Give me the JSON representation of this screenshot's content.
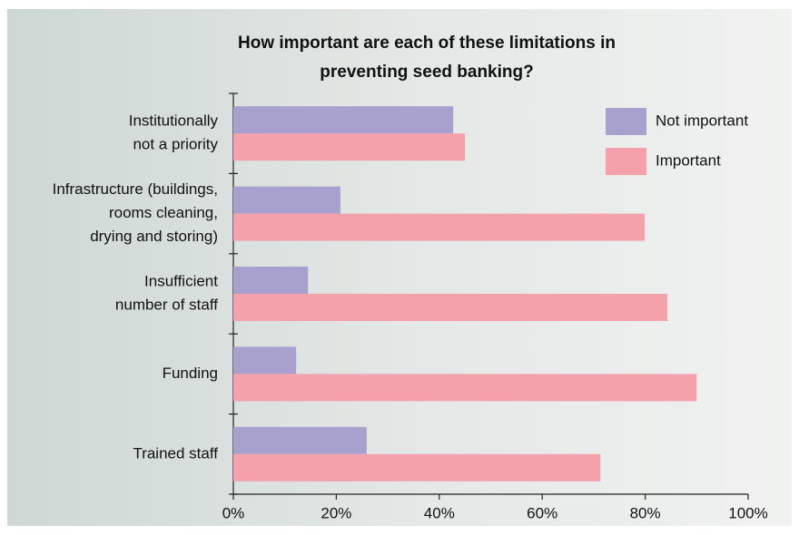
{
  "chart_data": {
    "type": "hbar",
    "title": [
      "How important are each of these limitations in",
      "preventing seed banking?"
    ],
    "categories": [
      [
        "Institutionally",
        "not a priority"
      ],
      [
        "Infrastructure (buildings,",
        "rooms cleaning,",
        "drying and storing)"
      ],
      [
        "Insufficient",
        "number of staff"
      ],
      [
        "Funding"
      ],
      [
        "Trained staff"
      ]
    ],
    "series": [
      {
        "name": "Not important",
        "color": "#a9a1cd",
        "values": [
          42.7,
          20.8,
          14.5,
          12.2,
          25.9
        ]
      },
      {
        "name": "Important",
        "color": "#f4a1ac",
        "values": [
          45,
          79.9,
          84.3,
          90,
          71.3
        ]
      }
    ],
    "xlim": [
      0,
      100
    ],
    "xticks": [
      {
        "value": 0,
        "label": "0%"
      },
      {
        "value": 20,
        "label": "20%"
      },
      {
        "value": 40,
        "label": "40%"
      },
      {
        "value": 60,
        "label": "60%"
      },
      {
        "value": 80,
        "label": "80%"
      },
      {
        "value": 100,
        "label": "100%"
      }
    ],
    "legend": "top-right"
  }
}
